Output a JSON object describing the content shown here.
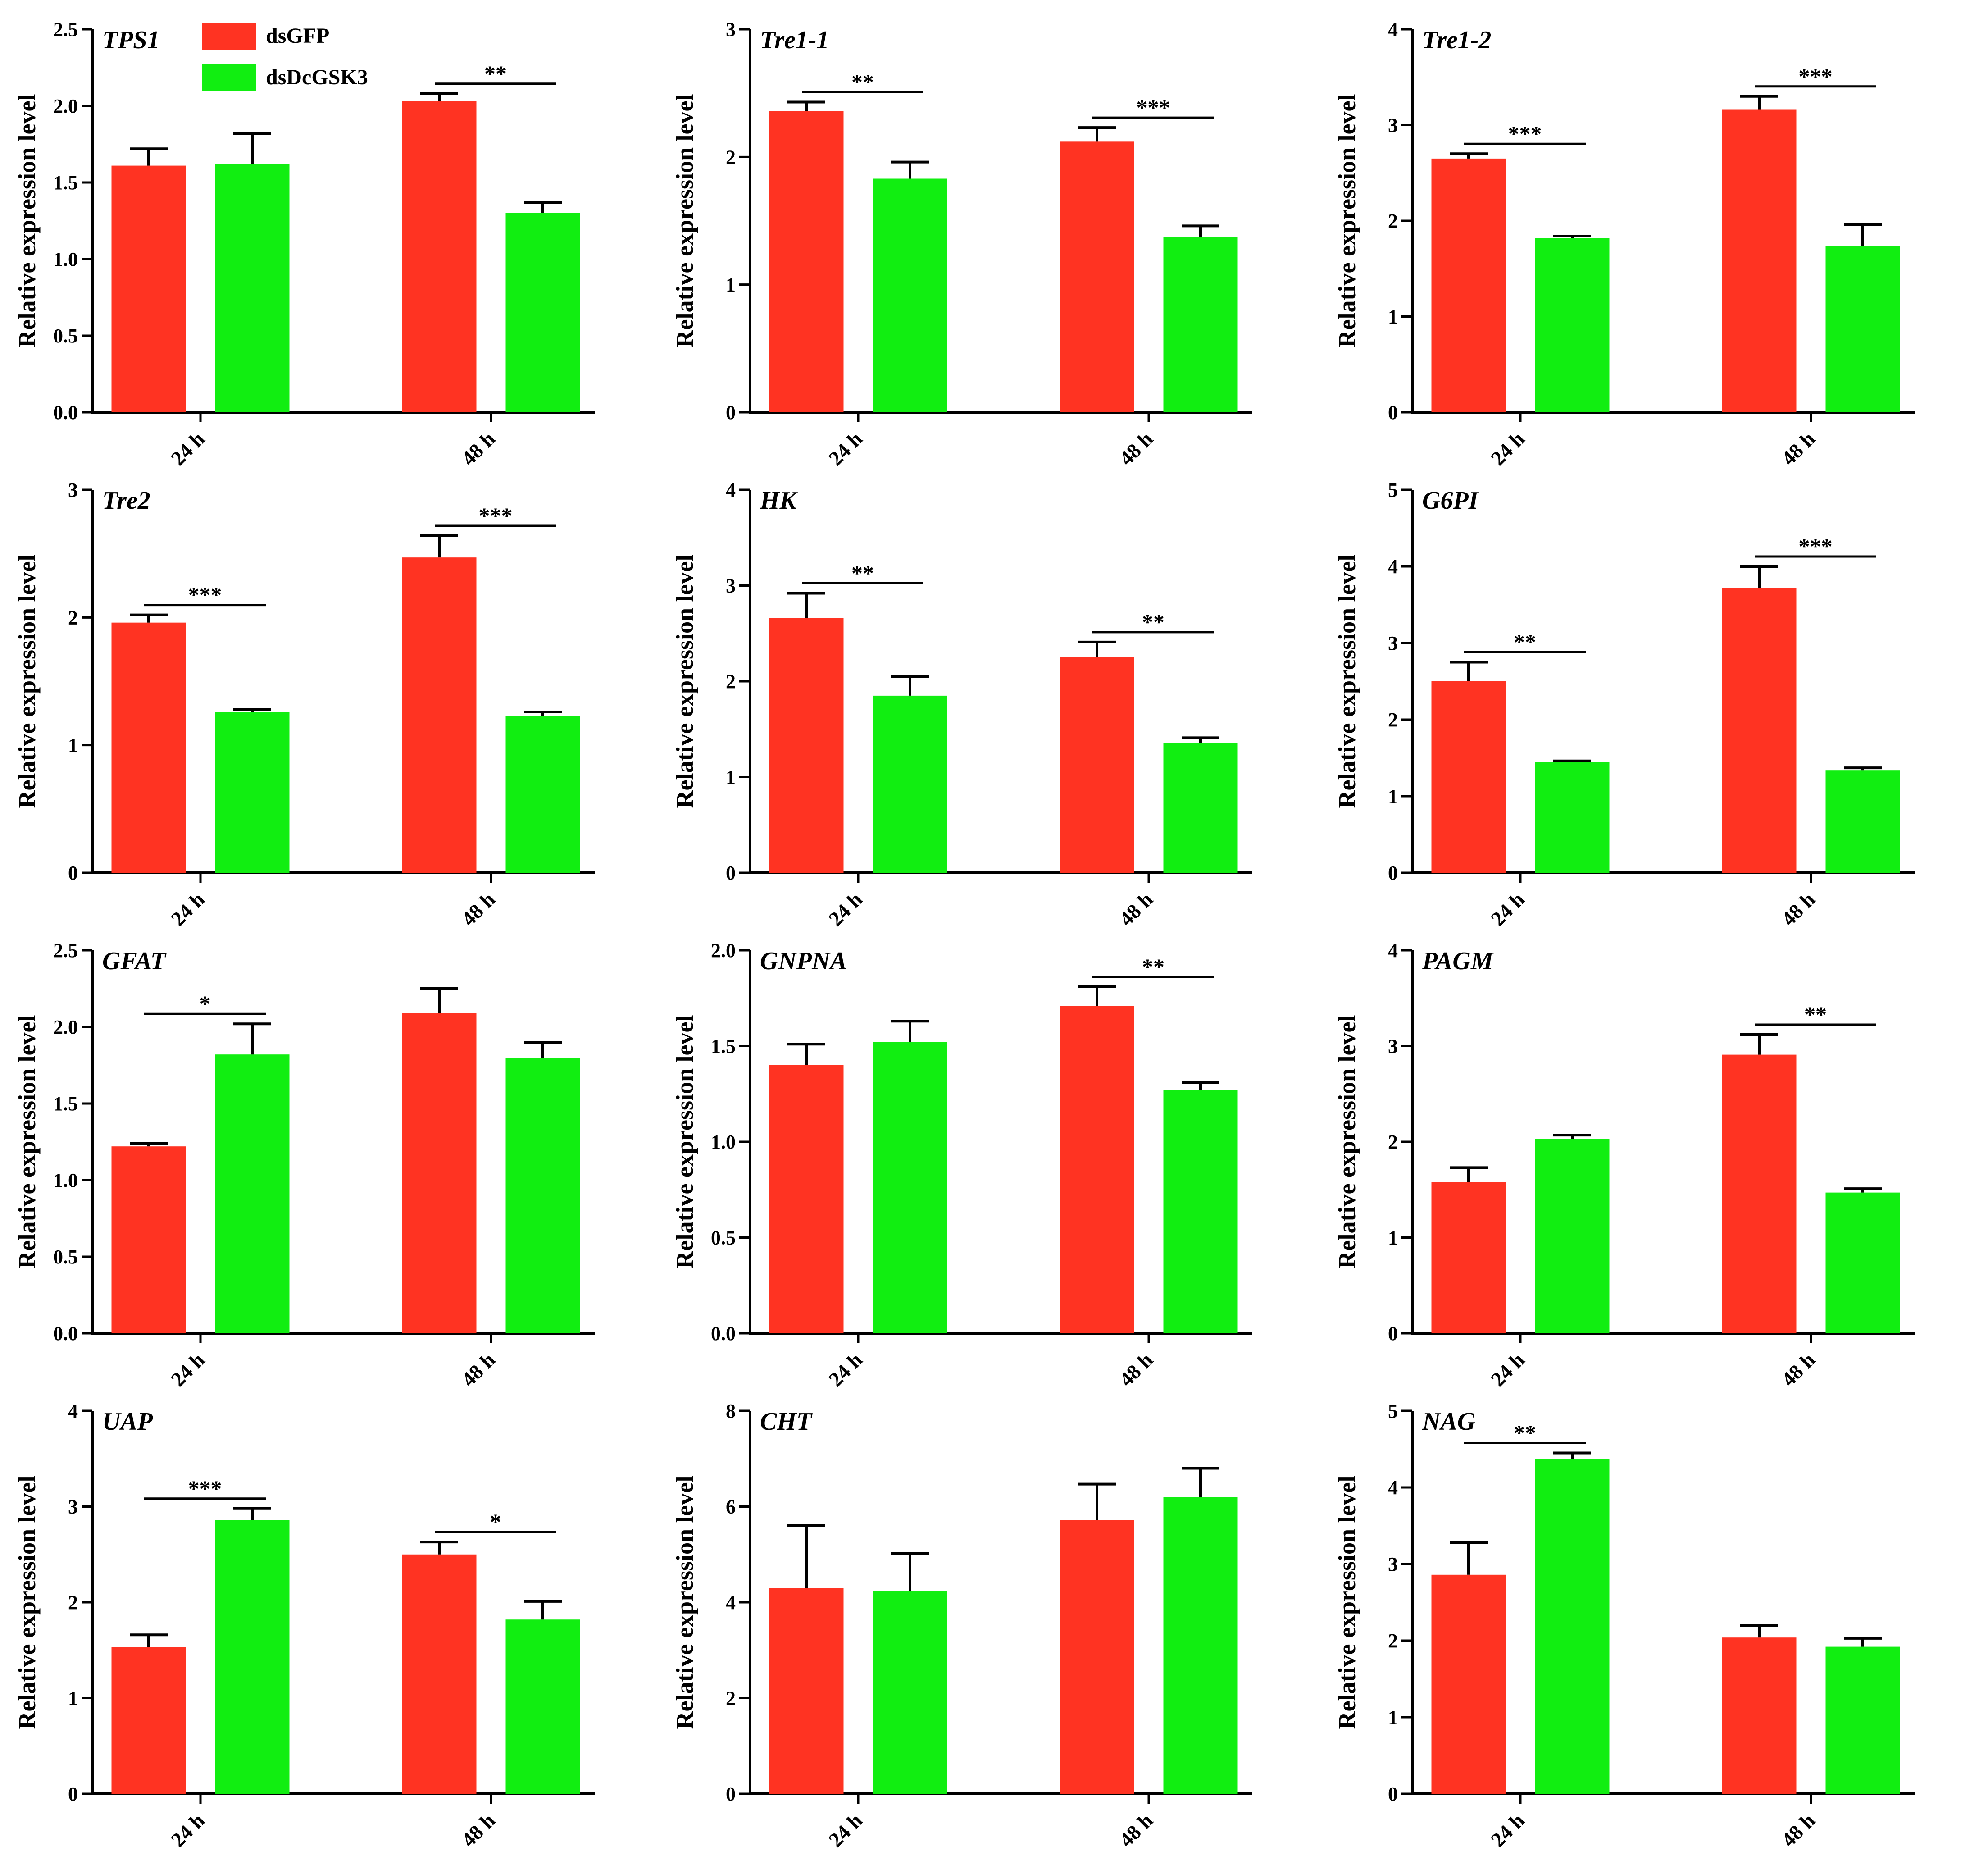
{
  "legend": {
    "position": "top-left, inside first panel",
    "entries": [
      {
        "label": "dsGFP",
        "color": "#ff3322"
      },
      {
        "label": "dsDcGSK3",
        "color": "#11ee11"
      }
    ]
  },
  "chart_data": [
    {
      "type": "bar",
      "title": "TPS1",
      "ylabel": "Relative expression level",
      "categories": [
        "24 h",
        "48 h"
      ],
      "ylim": [
        0,
        2.5
      ],
      "yticks": [
        "0.0",
        "0.5",
        "1.0",
        "1.5",
        "2.0",
        "2.5"
      ],
      "series": [
        {
          "name": "dsGFP",
          "values": [
            1.61,
            2.03
          ],
          "errors": [
            0.11,
            0.05
          ]
        },
        {
          "name": "dsDcGSK3",
          "values": [
            1.62,
            1.3
          ],
          "errors": [
            0.2,
            0.07
          ]
        }
      ],
      "significance": [
        "",
        "**"
      ]
    },
    {
      "type": "bar",
      "title": "Tre1-1",
      "ylabel": "Relative expression level",
      "categories": [
        "24 h",
        "48 h"
      ],
      "ylim": [
        0,
        3
      ],
      "yticks": [
        "0",
        "1",
        "2",
        "3"
      ],
      "series": [
        {
          "name": "dsGFP",
          "values": [
            2.36,
            2.12
          ],
          "errors": [
            0.07,
            0.11
          ]
        },
        {
          "name": "dsDcGSK3",
          "values": [
            1.83,
            1.37
          ],
          "errors": [
            0.13,
            0.09
          ]
        }
      ],
      "significance": [
        "**",
        "***"
      ]
    },
    {
      "type": "bar",
      "title": "Tre1-2",
      "ylabel": "Relative expression level",
      "categories": [
        "24 h",
        "48 h"
      ],
      "ylim": [
        0,
        4
      ],
      "yticks": [
        "0",
        "1",
        "2",
        "3",
        "4"
      ],
      "series": [
        {
          "name": "dsGFP",
          "values": [
            2.65,
            3.16
          ],
          "errors": [
            0.05,
            0.14
          ]
        },
        {
          "name": "dsDcGSK3",
          "values": [
            1.82,
            1.74
          ],
          "errors": [
            0.02,
            0.22
          ]
        }
      ],
      "significance": [
        "***",
        "***"
      ]
    },
    {
      "type": "bar",
      "title": "Tre2",
      "ylabel": "Relative expression level",
      "categories": [
        "24 h",
        "48 h"
      ],
      "ylim": [
        0,
        3
      ],
      "yticks": [
        "0",
        "1",
        "2",
        "3"
      ],
      "series": [
        {
          "name": "dsGFP",
          "values": [
            1.96,
            2.47
          ],
          "errors": [
            0.06,
            0.17
          ]
        },
        {
          "name": "dsDcGSK3",
          "values": [
            1.26,
            1.23
          ],
          "errors": [
            0.02,
            0.03
          ]
        }
      ],
      "significance": [
        "***",
        "***"
      ]
    },
    {
      "type": "bar",
      "title": "HK",
      "ylabel": "Relative expression level",
      "categories": [
        "24 h",
        "48 h"
      ],
      "ylim": [
        0,
        4
      ],
      "yticks": [
        "0",
        "1",
        "2",
        "3",
        "4"
      ],
      "series": [
        {
          "name": "dsGFP",
          "values": [
            2.66,
            2.25
          ],
          "errors": [
            0.26,
            0.16
          ]
        },
        {
          "name": "dsDcGSK3",
          "values": [
            1.85,
            1.36
          ],
          "errors": [
            0.2,
            0.05
          ]
        }
      ],
      "significance": [
        "**",
        "**"
      ]
    },
    {
      "type": "bar",
      "title": "G6PI",
      "ylabel": "Relative expression level",
      "categories": [
        "24 h",
        "48 h"
      ],
      "ylim": [
        0,
        5
      ],
      "yticks": [
        "0",
        "1",
        "2",
        "3",
        "4",
        "5"
      ],
      "series": [
        {
          "name": "dsGFP",
          "values": [
            2.5,
            3.72
          ],
          "errors": [
            0.25,
            0.28
          ]
        },
        {
          "name": "dsDcGSK3",
          "values": [
            1.45,
            1.34
          ],
          "errors": [
            0.01,
            0.03
          ]
        }
      ],
      "significance": [
        "**",
        "***"
      ]
    },
    {
      "type": "bar",
      "title": "GFAT",
      "ylabel": "Relative expression level",
      "categories": [
        "24 h",
        "48 h"
      ],
      "ylim": [
        0,
        2.5
      ],
      "yticks": [
        "0.0",
        "0.5",
        "1.0",
        "1.5",
        "2.0",
        "2.5"
      ],
      "series": [
        {
          "name": "dsGFP",
          "values": [
            1.22,
            2.09
          ],
          "errors": [
            0.02,
            0.16
          ]
        },
        {
          "name": "dsDcGSK3",
          "values": [
            1.82,
            1.8
          ],
          "errors": [
            0.2,
            0.1
          ]
        }
      ],
      "significance": [
        "*",
        ""
      ]
    },
    {
      "type": "bar",
      "title": "GNPNA",
      "ylabel": "Relative expression level",
      "categories": [
        "24 h",
        "48 h"
      ],
      "ylim": [
        0,
        2.0
      ],
      "yticks": [
        "0.0",
        "0.5",
        "1.0",
        "1.5",
        "2.0"
      ],
      "series": [
        {
          "name": "dsGFP",
          "values": [
            1.4,
            1.71
          ],
          "errors": [
            0.11,
            0.1
          ]
        },
        {
          "name": "dsDcGSK3",
          "values": [
            1.52,
            1.27
          ],
          "errors": [
            0.11,
            0.04
          ]
        }
      ],
      "significance": [
        "",
        "**"
      ]
    },
    {
      "type": "bar",
      "title": "PAGM",
      "ylabel": "Relative expression level",
      "categories": [
        "24 h",
        "48 h"
      ],
      "ylim": [
        0,
        4
      ],
      "yticks": [
        "0",
        "1",
        "2",
        "3",
        "4"
      ],
      "series": [
        {
          "name": "dsGFP",
          "values": [
            1.58,
            2.91
          ],
          "errors": [
            0.15,
            0.21
          ]
        },
        {
          "name": "dsDcGSK3",
          "values": [
            2.03,
            1.47
          ],
          "errors": [
            0.04,
            0.04
          ]
        }
      ],
      "significance": [
        "",
        "**"
      ]
    },
    {
      "type": "bar",
      "title": "UAP",
      "ylabel": "Relative expression level",
      "categories": [
        "24 h",
        "48 h"
      ],
      "ylim": [
        0,
        4
      ],
      "yticks": [
        "0",
        "1",
        "2",
        "3",
        "4"
      ],
      "series": [
        {
          "name": "dsGFP",
          "values": [
            1.53,
            2.5
          ],
          "errors": [
            0.13,
            0.13
          ]
        },
        {
          "name": "dsDcGSK3",
          "values": [
            2.86,
            1.82
          ],
          "errors": [
            0.12,
            0.19
          ]
        }
      ],
      "significance": [
        "***",
        "*"
      ]
    },
    {
      "type": "bar",
      "title": "CHT",
      "ylabel": "Relative expression level",
      "categories": [
        "24 h",
        "48 h"
      ],
      "ylim": [
        0,
        8
      ],
      "yticks": [
        "0",
        "2",
        "4",
        "6",
        "8"
      ],
      "series": [
        {
          "name": "dsGFP",
          "values": [
            4.3,
            5.72
          ],
          "errors": [
            1.3,
            0.75
          ]
        },
        {
          "name": "dsDcGSK3",
          "values": [
            4.24,
            6.2
          ],
          "errors": [
            0.78,
            0.6
          ]
        }
      ],
      "significance": [
        "",
        ""
      ]
    },
    {
      "type": "bar",
      "title": "NAG",
      "ylabel": "Relative expression level",
      "categories": [
        "24 h",
        "48 h"
      ],
      "ylim": [
        0,
        5
      ],
      "yticks": [
        "0",
        "1",
        "2",
        "3",
        "4",
        "5"
      ],
      "series": [
        {
          "name": "dsGFP",
          "values": [
            2.86,
            2.04
          ],
          "errors": [
            0.42,
            0.16
          ]
        },
        {
          "name": "dsDcGSK3",
          "values": [
            4.37,
            1.92
          ],
          "errors": [
            0.08,
            0.11
          ]
        }
      ],
      "significance": [
        "**",
        ""
      ]
    }
  ]
}
